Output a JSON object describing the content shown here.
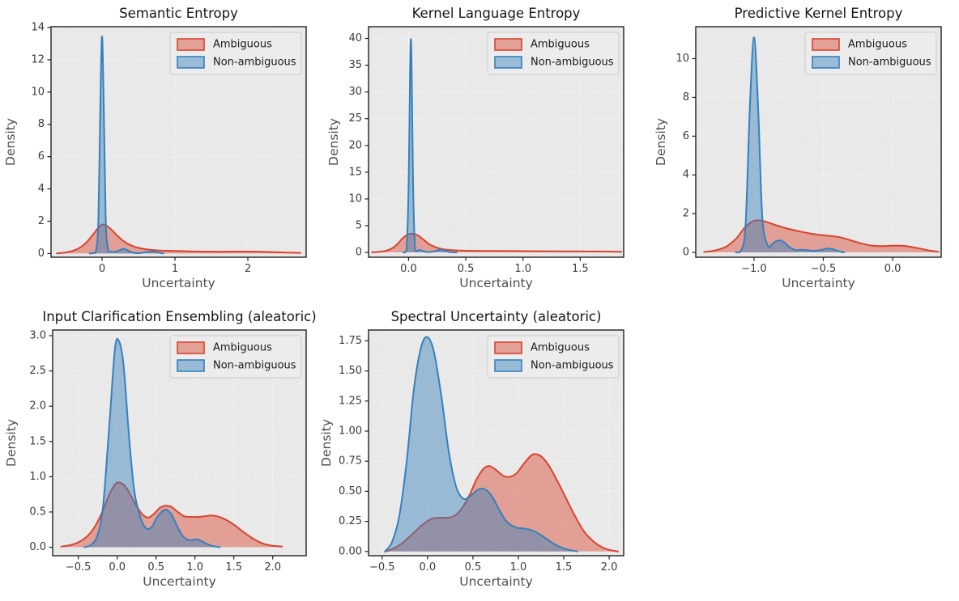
{
  "figure": {
    "background": "#ffffff",
    "axes_background": "#e9e9e9",
    "grid_color": "#f3f3f3",
    "frame_color": "#1f1f1f",
    "title_color": "#161616",
    "tick_label_color": "#3b3b3b",
    "axis_label_color": "#4f4f4f",
    "legend_background": "#ececec",
    "legend_border": "#cccccc",
    "fill_opacity": 0.45
  },
  "colors": {
    "ambiguous": "#d8442f",
    "non_ambiguous": "#3580bc"
  },
  "legend": {
    "position": "upper-right",
    "items": [
      {
        "label": "Ambiguous",
        "color": "#d8442f"
      },
      {
        "label": "Non-ambiguous",
        "color": "#3580bc"
      }
    ]
  },
  "chart_data": [
    {
      "type": "area",
      "title": "Semantic Entropy",
      "xlabel": "Uncertainty",
      "ylabel": "Density",
      "grid": true,
      "legend_position": "upper-right",
      "xlim": [
        -0.7,
        2.8
      ],
      "ylim": [
        -0.23,
        14.05
      ],
      "xticks": {
        "values": [
          0,
          1,
          2
        ],
        "labels": [
          "0",
          "1",
          "2"
        ]
      },
      "yticks": {
        "values": [
          0,
          2,
          4,
          6,
          8,
          10,
          12,
          14
        ],
        "labels": [
          "0",
          "2",
          "4",
          "6",
          "8",
          "10",
          "12",
          "14"
        ]
      },
      "series": [
        {
          "name": "Ambiguous",
          "color": "#d8442f",
          "x": [
            -0.62,
            -0.52,
            -0.42,
            -0.32,
            -0.22,
            -0.12,
            -0.04,
            0.02,
            0.1,
            0.2,
            0.3,
            0.4,
            0.5,
            0.62,
            0.8,
            1.0,
            1.15,
            1.35,
            1.6,
            1.85,
            2.05,
            2.25,
            2.45,
            2.6,
            2.72
          ],
          "y": [
            0.01,
            0.05,
            0.14,
            0.32,
            0.66,
            1.2,
            1.65,
            1.8,
            1.6,
            1.15,
            0.75,
            0.5,
            0.35,
            0.25,
            0.18,
            0.16,
            0.14,
            0.12,
            0.11,
            0.12,
            0.12,
            0.1,
            0.07,
            0.05,
            0.03
          ]
        },
        {
          "name": "Non-ambiguous",
          "color": "#3580bc",
          "x": [
            -0.17,
            -0.12,
            -0.08,
            -0.05,
            -0.02,
            0.0,
            0.02,
            0.05,
            0.08,
            0.12,
            0.17,
            0.22,
            0.27,
            0.31,
            0.36,
            0.42,
            0.5,
            0.58,
            0.64,
            0.7,
            0.76,
            0.84
          ],
          "y": [
            0.0,
            0.03,
            0.25,
            2.2,
            10.0,
            13.45,
            10.0,
            2.2,
            0.35,
            0.12,
            0.1,
            0.16,
            0.26,
            0.28,
            0.18,
            0.05,
            0.02,
            0.07,
            0.11,
            0.12,
            0.07,
            0.0
          ]
        }
      ]
    },
    {
      "type": "area",
      "title": "Kernel Language Entropy",
      "xlabel": "Uncertainty",
      "ylabel": "Density",
      "grid": true,
      "legend_position": "upper-right",
      "xlim": [
        -0.35,
        1.88
      ],
      "ylim": [
        -0.9,
        42.2
      ],
      "xticks": {
        "values": [
          0.0,
          0.5,
          1.0,
          1.5
        ],
        "labels": [
          "0.0",
          "0.5",
          "1.0",
          "1.5"
        ]
      },
      "yticks": {
        "values": [
          0,
          5,
          10,
          15,
          20,
          25,
          30,
          35,
          40
        ],
        "labels": [
          "0",
          "5",
          "10",
          "15",
          "20",
          "25",
          "30",
          "35",
          "40"
        ]
      },
      "series": [
        {
          "name": "Ambiguous",
          "color": "#d8442f",
          "x": [
            -0.32,
            -0.26,
            -0.2,
            -0.15,
            -0.1,
            -0.05,
            0.0,
            0.03,
            0.08,
            0.13,
            0.18,
            0.24,
            0.3,
            0.38,
            0.48,
            0.6,
            0.75,
            0.9,
            1.05,
            1.2,
            1.35,
            1.5,
            1.65,
            1.78,
            1.86
          ],
          "y": [
            0.02,
            0.1,
            0.3,
            0.7,
            1.5,
            2.7,
            3.4,
            3.5,
            3.2,
            2.4,
            1.55,
            0.95,
            0.6,
            0.42,
            0.33,
            0.28,
            0.26,
            0.25,
            0.23,
            0.22,
            0.2,
            0.19,
            0.17,
            0.14,
            0.12
          ]
        },
        {
          "name": "Non-ambiguous",
          "color": "#3580bc",
          "x": [
            -0.045,
            -0.03,
            -0.015,
            0.0,
            0.02,
            0.04,
            0.055,
            0.07,
            0.09,
            0.11,
            0.13,
            0.16,
            0.2,
            0.24,
            0.27,
            0.3,
            0.33,
            0.37,
            0.42
          ],
          "y": [
            0.0,
            0.1,
            1.5,
            12.0,
            39.9,
            12.0,
            1.5,
            0.3,
            0.45,
            0.4,
            0.2,
            0.08,
            0.1,
            0.3,
            0.48,
            0.45,
            0.2,
            0.04,
            0.0
          ]
        }
      ]
    },
    {
      "type": "area",
      "title": "Predictive Kernel Entropy",
      "xlabel": "Uncertainty",
      "ylabel": "Density",
      "grid": true,
      "legend_position": "upper-right",
      "xlim": [
        -1.42,
        0.35
      ],
      "ylim": [
        -0.25,
        11.65
      ],
      "xticks": {
        "values": [
          -1.0,
          -0.5,
          0.0
        ],
        "labels": [
          "−1.0",
          "−0.5",
          "0.0"
        ]
      },
      "yticks": {
        "values": [
          0,
          2,
          4,
          6,
          8,
          10
        ],
        "labels": [
          "0",
          "2",
          "4",
          "6",
          "8",
          "10"
        ]
      },
      "series": [
        {
          "name": "Ambiguous",
          "color": "#d8442f",
          "x": [
            -1.36,
            -1.28,
            -1.2,
            -1.13,
            -1.07,
            -1.01,
            -0.96,
            -0.9,
            -0.84,
            -0.77,
            -0.68,
            -0.6,
            -0.52,
            -0.45,
            -0.38,
            -0.3,
            -0.22,
            -0.15,
            -0.08,
            -0.02,
            0.04,
            0.1,
            0.18,
            0.26,
            0.33
          ],
          "y": [
            0.02,
            0.1,
            0.3,
            0.7,
            1.25,
            1.6,
            1.65,
            1.55,
            1.4,
            1.25,
            1.1,
            0.98,
            0.9,
            0.85,
            0.78,
            0.62,
            0.45,
            0.35,
            0.32,
            0.34,
            0.35,
            0.32,
            0.22,
            0.1,
            0.03
          ]
        },
        {
          "name": "Non-ambiguous",
          "color": "#3580bc",
          "x": [
            -1.13,
            -1.09,
            -1.06,
            -1.03,
            -1.0,
            -0.97,
            -0.94,
            -0.9,
            -0.87,
            -0.84,
            -0.81,
            -0.78,
            -0.74,
            -0.7,
            -0.66,
            -0.62,
            -0.57,
            -0.52,
            -0.47,
            -0.43,
            -0.39,
            -0.35
          ],
          "y": [
            0.0,
            0.15,
            1.5,
            7.5,
            11.1,
            7.5,
            1.8,
            0.35,
            0.42,
            0.58,
            0.62,
            0.5,
            0.25,
            0.12,
            0.14,
            0.12,
            0.08,
            0.12,
            0.2,
            0.16,
            0.06,
            0.0
          ]
        }
      ]
    },
    {
      "type": "area",
      "title": "Input Clarification Ensembling (aleatoric)",
      "xlabel": "Uncertainty",
      "ylabel": "Density",
      "grid": true,
      "legend_position": "upper-right",
      "xlim": [
        -0.83,
        2.43
      ],
      "ylim": [
        -0.12,
        3.08
      ],
      "xticks": {
        "values": [
          -0.5,
          0.0,
          0.5,
          1.0,
          1.5,
          2.0
        ],
        "labels": [
          "−0.5",
          "0.0",
          "0.5",
          "1.0",
          "1.5",
          "2.0"
        ]
      },
      "yticks": {
        "values": [
          0.0,
          0.5,
          1.0,
          1.5,
          2.0,
          2.5,
          3.0
        ],
        "labels": [
          "0.0",
          "0.5",
          "1.0",
          "1.5",
          "2.0",
          "2.5",
          "3.0"
        ]
      },
      "series": [
        {
          "name": "Ambiguous",
          "color": "#d8442f",
          "x": [
            -0.72,
            -0.6,
            -0.5,
            -0.4,
            -0.3,
            -0.2,
            -0.1,
            -0.02,
            0.05,
            0.12,
            0.2,
            0.28,
            0.34,
            0.4,
            0.47,
            0.55,
            0.63,
            0.7,
            0.78,
            0.86,
            0.95,
            1.05,
            1.13,
            1.2,
            1.28,
            1.38,
            1.5,
            1.62,
            1.75,
            1.88,
            2.0,
            2.12
          ],
          "y": [
            0.01,
            0.03,
            0.07,
            0.14,
            0.27,
            0.48,
            0.75,
            0.9,
            0.91,
            0.84,
            0.68,
            0.53,
            0.45,
            0.42,
            0.47,
            0.56,
            0.59,
            0.57,
            0.5,
            0.44,
            0.43,
            0.43,
            0.44,
            0.45,
            0.44,
            0.4,
            0.32,
            0.22,
            0.12,
            0.05,
            0.02,
            0.01
          ]
        },
        {
          "name": "Non-ambiguous",
          "color": "#3580bc",
          "x": [
            -0.42,
            -0.33,
            -0.25,
            -0.18,
            -0.1,
            -0.03,
            0.02,
            0.08,
            0.15,
            0.22,
            0.3,
            0.37,
            0.44,
            0.5,
            0.57,
            0.63,
            0.7,
            0.77,
            0.85,
            0.93,
            1.0,
            1.06,
            1.13,
            1.22,
            1.32
          ],
          "y": [
            0.0,
            0.04,
            0.18,
            0.6,
            1.75,
            2.8,
            2.93,
            2.6,
            1.6,
            0.8,
            0.42,
            0.27,
            0.28,
            0.4,
            0.5,
            0.53,
            0.46,
            0.3,
            0.15,
            0.1,
            0.11,
            0.1,
            0.06,
            0.02,
            0.0
          ]
        }
      ]
    },
    {
      "type": "area",
      "title": "Spectral Uncertainty (aleatoric)",
      "xlabel": "Uncertainty",
      "ylabel": "Density",
      "grid": true,
      "legend_position": "upper-right",
      "xlim": [
        -0.65,
        2.16
      ],
      "ylim": [
        -0.035,
        1.84
      ],
      "xticks": {
        "values": [
          -0.5,
          0.0,
          0.5,
          1.0,
          1.5,
          2.0
        ],
        "labels": [
          "−0.5",
          "0.0",
          "0.5",
          "1.0",
          "1.5",
          "2.0"
        ]
      },
      "yticks": {
        "values": [
          0.0,
          0.25,
          0.5,
          0.75,
          1.0,
          1.25,
          1.5,
          1.75
        ],
        "labels": [
          "0.00",
          "0.25",
          "0.50",
          "0.75",
          "1.00",
          "1.25",
          "1.50",
          "1.75"
        ]
      },
      "series": [
        {
          "name": "Ambiguous",
          "color": "#d8442f",
          "x": [
            -0.46,
            -0.36,
            -0.26,
            -0.16,
            -0.06,
            0.04,
            0.12,
            0.2,
            0.28,
            0.36,
            0.45,
            0.54,
            0.62,
            0.68,
            0.75,
            0.83,
            0.9,
            0.98,
            1.06,
            1.13,
            1.18,
            1.25,
            1.33,
            1.42,
            1.52,
            1.62,
            1.73,
            1.85,
            1.97,
            2.1
          ],
          "y": [
            0.0,
            0.03,
            0.08,
            0.15,
            0.22,
            0.27,
            0.28,
            0.28,
            0.29,
            0.34,
            0.45,
            0.6,
            0.69,
            0.71,
            0.68,
            0.63,
            0.62,
            0.65,
            0.73,
            0.79,
            0.81,
            0.79,
            0.72,
            0.6,
            0.45,
            0.3,
            0.16,
            0.07,
            0.02,
            0.0
          ]
        },
        {
          "name": "Non-ambiguous",
          "color": "#3580bc",
          "x": [
            -0.47,
            -0.39,
            -0.31,
            -0.23,
            -0.15,
            -0.07,
            0.0,
            0.07,
            0.15,
            0.23,
            0.31,
            0.39,
            0.47,
            0.55,
            0.62,
            0.7,
            0.78,
            0.87,
            0.97,
            1.07,
            1.17,
            1.28,
            1.4,
            1.52,
            1.65
          ],
          "y": [
            0.0,
            0.08,
            0.3,
            0.75,
            1.35,
            1.7,
            1.78,
            1.66,
            1.3,
            0.85,
            0.55,
            0.44,
            0.46,
            0.51,
            0.52,
            0.47,
            0.36,
            0.25,
            0.2,
            0.19,
            0.17,
            0.12,
            0.06,
            0.02,
            0.0
          ]
        }
      ]
    }
  ]
}
